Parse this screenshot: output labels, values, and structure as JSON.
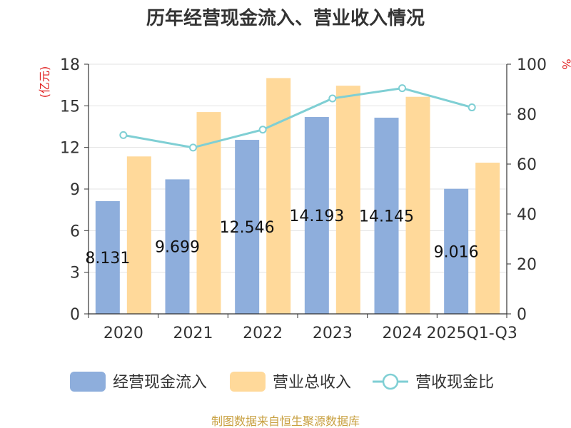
{
  "title": "历年经营现金流入、营业收入情况",
  "source": "制图数据来自恒生聚源数据库",
  "chart_data": {
    "type": "bar",
    "categories": [
      "2020",
      "2021",
      "2022",
      "2023",
      "2024",
      "2025Q1-Q3"
    ],
    "series": [
      {
        "name": "经营现金流入",
        "type": "bar",
        "axis": "left",
        "color": "#8eaedc",
        "values": [
          8.131,
          9.699,
          12.546,
          14.193,
          14.145,
          9.016
        ],
        "labels": [
          "8.131",
          "9.699",
          "12.546",
          "14.193",
          "14.145",
          "9.016"
        ]
      },
      {
        "name": "营业总收入",
        "type": "bar",
        "axis": "left",
        "color": "#ffd99a",
        "values": [
          11.35,
          14.55,
          17.0,
          16.45,
          15.65,
          10.9
        ]
      },
      {
        "name": "营收现金比",
        "type": "line",
        "axis": "right",
        "color": "#7fcfd4",
        "values": [
          71.6,
          66.6,
          73.8,
          86.3,
          90.4,
          82.7
        ]
      }
    ],
    "y_left": {
      "unit": "(亿元)",
      "min": 0,
      "max": 18,
      "ticks": [
        "0",
        "3",
        "6",
        "9",
        "12",
        "15",
        "18"
      ]
    },
    "y_right": {
      "unit": "%",
      "min": 0,
      "max": 100,
      "ticks": [
        "0",
        "20",
        "40",
        "60",
        "80",
        "100"
      ]
    },
    "grid": true,
    "legend": "bottom"
  }
}
